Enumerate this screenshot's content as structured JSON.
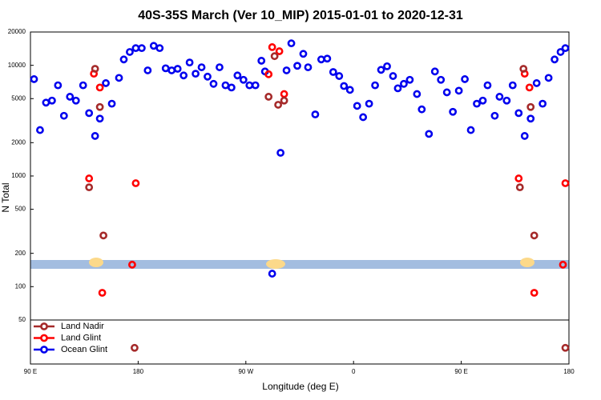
{
  "chart_data": {
    "type": "scatter",
    "title": "40S-35S March (Ver 10_MIP)   2015-01-01 to 2020-12-31",
    "xlabel": "Longitude (deg E)",
    "ylabel": "N Total",
    "log_y": true,
    "legend": "lower left",
    "xlim": [
      90,
      540
    ],
    "xticks": [
      {
        "value": 90,
        "label": "90 E"
      },
      180,
      {
        "value": 270,
        "label": "90 W"
      },
      {
        "value": 360,
        "label": "0"
      },
      {
        "value": 450,
        "label": "90 E"
      },
      {
        "value": 540,
        "label": "180"
      }
    ],
    "ylim": [
      20,
      20000
    ],
    "yticks": [
      50,
      100,
      200,
      500,
      1000,
      2000,
      5000,
      10000,
      20000
    ],
    "series": [
      {
        "name": "Land Nadir",
        "color": "#a52a2a",
        "x": [
          144,
          148,
          139,
          151,
          289,
          294,
          297,
          302,
          502,
          508,
          499,
          511,
          177,
          537
        ],
        "values": [
          9300,
          4200,
          790,
          290,
          5200,
          12100,
          4400,
          4800,
          9300,
          4200,
          790,
          290,
          28,
          28
        ]
      },
      {
        "name": "Land Glint",
        "color": "#ff0000",
        "x": [
          143,
          148,
          139,
          178,
          175,
          150,
          289,
          292,
          298,
          302,
          503,
          507,
          498,
          537,
          535,
          511
        ],
        "values": [
          8400,
          6300,
          950,
          860,
          158,
          88,
          8300,
          14600,
          13400,
          5500,
          8400,
          6300,
          950,
          860,
          158,
          88
        ]
      },
      {
        "name": "Ocean Glint",
        "color": "#0000ee",
        "x": [
          93,
          98,
          103,
          108,
          113,
          118,
          123,
          128,
          134,
          139,
          144,
          148,
          153,
          158,
          164,
          168,
          173,
          178,
          183,
          188,
          193,
          198,
          203,
          208,
          213,
          218,
          223,
          228,
          233,
          238,
          243,
          248,
          253,
          258,
          263,
          268,
          273,
          278,
          283,
          286,
          292,
          299,
          304,
          308,
          313,
          318,
          322,
          328,
          333,
          338,
          343,
          348,
          352,
          357,
          363,
          368,
          373,
          378,
          383,
          388,
          393,
          397,
          402,
          407,
          413,
          417,
          423,
          428,
          433,
          438,
          443,
          448,
          453,
          458,
          463,
          468,
          472,
          478,
          482,
          488,
          493,
          498,
          503,
          508,
          513,
          518,
          523,
          528,
          533,
          537
        ],
        "values": [
          7500,
          2600,
          4600,
          4800,
          6600,
          3500,
          5200,
          4800,
          6600,
          3700,
          2300,
          3300,
          6900,
          4500,
          7700,
          11300,
          13200,
          14300,
          14300,
          9000,
          15000,
          14300,
          9400,
          9000,
          9300,
          8100,
          10600,
          8400,
          9600,
          7900,
          6800,
          9600,
          6600,
          6300,
          8100,
          7400,
          6600,
          6600,
          11000,
          8800,
          131,
          1620,
          9000,
          15800,
          9900,
          12700,
          9600,
          3600,
          11300,
          11500,
          8700,
          8000,
          6500,
          6000,
          4300,
          3400,
          4500,
          6600,
          9100,
          9800,
          8000,
          6200,
          6800,
          7400,
          5500,
          4000,
          2400,
          8800,
          7400,
          5700,
          3800,
          5900,
          7500,
          2600,
          4500,
          4800,
          6600,
          3500,
          5200,
          4800,
          6600,
          3700,
          2300,
          3300,
          6900,
          4500,
          7700,
          11300,
          13200,
          14300
        ]
      }
    ]
  }
}
